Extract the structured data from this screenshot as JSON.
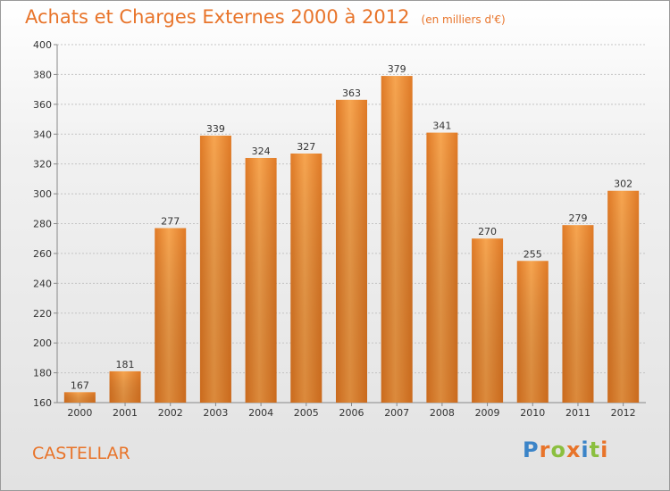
{
  "chart_data": {
    "type": "bar",
    "title": "Achats et Charges Externes 2000 à 2012",
    "unit_note": "(en milliers d'€)",
    "categories": [
      "2000",
      "2001",
      "2002",
      "2003",
      "2004",
      "2005",
      "2006",
      "2007",
      "2008",
      "2009",
      "2010",
      "2011",
      "2012"
    ],
    "values": [
      167,
      181,
      277,
      339,
      324,
      327,
      363,
      379,
      341,
      270,
      255,
      279,
      302
    ],
    "xlabel": "",
    "ylabel": "",
    "ylim": [
      160,
      400
    ],
    "yticks": [
      160,
      180,
      200,
      220,
      240,
      260,
      280,
      300,
      320,
      340,
      360,
      380,
      400
    ],
    "grid": true,
    "bar_color": "#f0913a"
  },
  "commune": "CASTELLAR",
  "logo": {
    "letters": [
      "P",
      "r",
      "o",
      "x",
      "i",
      "t",
      "i"
    ]
  }
}
